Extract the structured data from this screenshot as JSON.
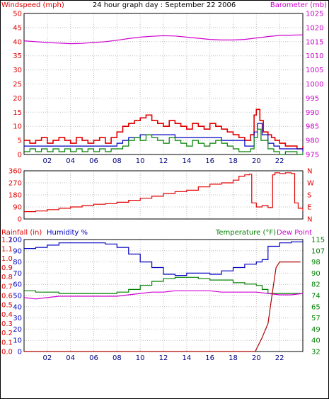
{
  "colors": {
    "red": "#e00000",
    "magenta": "#d000d0",
    "blue": "#0000c0",
    "green": "#008000",
    "darkred": "#b00000"
  },
  "chart_data": [
    {
      "id": "wind_baro",
      "type": "line",
      "title": "24 hour graph day : September 22 2006",
      "left_label": "Windspeed (mph)",
      "right_label": "Barometer (mb)",
      "x_ticks": [
        "02",
        "04",
        "06",
        "08",
        "10",
        "12",
        "14",
        "16",
        "18",
        "20",
        "22"
      ],
      "x_range": [
        0,
        24
      ],
      "y_left_ticks": [
        "0",
        "5",
        "10",
        "15",
        "20",
        "25",
        "30",
        "35",
        "40",
        "45",
        "50"
      ],
      "y_left_range": [
        0,
        50
      ],
      "y_right_ticks": [
        "975",
        "980",
        "985",
        "990",
        "995",
        "1000",
        "1005",
        "1010",
        "1015",
        "1020",
        "1025"
      ],
      "y_right_range": [
        975,
        1025
      ],
      "grid": true,
      "series": [
        {
          "role": "barometer",
          "axis": "right",
          "color": "magenta",
          "x": [
            0,
            1,
            2,
            3,
            4,
            5,
            6,
            7,
            8,
            9,
            10,
            11,
            12,
            13,
            14,
            15,
            16,
            17,
            18,
            19,
            20,
            21,
            22,
            23,
            24
          ],
          "y": [
            1015.3,
            1015.0,
            1014.7,
            1014.5,
            1014.3,
            1014.4,
            1014.7,
            1015.0,
            1015.5,
            1016.1,
            1016.6,
            1016.9,
            1017.1,
            1017.0,
            1016.6,
            1016.2,
            1015.8,
            1015.6,
            1015.6,
            1015.8,
            1016.3,
            1016.8,
            1017.2,
            1017.3,
            1017.4
          ]
        },
        {
          "role": "gust",
          "axis": "left",
          "color": "red",
          "x": [
            0,
            0.5,
            1,
            1.5,
            2,
            2.5,
            3,
            3.5,
            4,
            4.5,
            5,
            5.5,
            6,
            6.5,
            7,
            7.5,
            8,
            8.5,
            9,
            9.5,
            10,
            10.5,
            11,
            11.5,
            12,
            12.5,
            13,
            13.5,
            14,
            14.5,
            15,
            15.5,
            16,
            16.5,
            17,
            17.5,
            18,
            18.5,
            19,
            19.5,
            19.8,
            20,
            20.3,
            20.6,
            21,
            21.3,
            21.6,
            22,
            22.5,
            23,
            23.5,
            24
          ],
          "y": [
            5,
            4,
            5,
            6,
            4,
            5,
            6,
            5,
            4,
            6,
            5,
            4,
            5,
            6,
            4,
            6,
            8,
            10,
            11,
            12,
            13,
            14,
            12,
            11,
            10,
            12,
            11,
            10,
            9,
            11,
            10,
            9,
            11,
            10,
            9,
            8,
            7,
            6,
            5,
            7,
            14,
            16,
            12,
            8,
            7,
            6,
            5,
            4,
            3,
            3,
            2,
            3
          ]
        },
        {
          "role": "average",
          "axis": "left",
          "color": "blue",
          "x": [
            0,
            1,
            2,
            3,
            4,
            5,
            6,
            7,
            8,
            8.5,
            9,
            10,
            11,
            12,
            13,
            14,
            15,
            16,
            17,
            18,
            19,
            19.8,
            20.1,
            20.5,
            21,
            21.5,
            22,
            23,
            24
          ],
          "y": [
            3,
            3,
            3,
            3,
            3,
            3,
            3,
            3,
            4,
            5,
            6,
            7,
            7,
            7,
            6,
            6,
            6,
            6,
            5,
            5,
            3,
            8,
            11,
            7,
            4,
            3,
            2,
            2,
            1
          ]
        },
        {
          "role": "low",
          "axis": "left",
          "color": "green",
          "x": [
            0,
            0.5,
            1,
            1.5,
            2,
            2.5,
            3,
            3.5,
            4,
            4.5,
            5,
            5.5,
            6,
            6.5,
            7,
            7.5,
            8,
            8.5,
            9,
            9.5,
            10,
            10.5,
            11,
            11.5,
            12,
            12.5,
            13,
            13.5,
            14,
            14.5,
            15,
            15.5,
            16,
            16.5,
            17,
            17.5,
            18,
            18.5,
            19,
            19.5,
            19.8,
            20.1,
            20.4,
            21,
            21.5,
            22,
            22.5,
            23,
            23.5,
            24
          ],
          "y": [
            1,
            2,
            1,
            2,
            1,
            2,
            1,
            2,
            1,
            2,
            1,
            2,
            1,
            2,
            1,
            2,
            2,
            3,
            5,
            6,
            5,
            7,
            6,
            5,
            4,
            6,
            5,
            4,
            3,
            5,
            4,
            3,
            4,
            5,
            4,
            3,
            2,
            1,
            1,
            2,
            6,
            9,
            5,
            2,
            1,
            0,
            1,
            1,
            0,
            1
          ]
        }
      ]
    },
    {
      "id": "wind_dir",
      "type": "line",
      "x_ticks": [],
      "x_range": [
        0,
        24
      ],
      "y_left_ticks": [
        "0",
        "90",
        "180",
        "270",
        "360"
      ],
      "y_left_range": [
        0,
        360
      ],
      "y_right_ticks": [
        "N",
        "E",
        "S",
        "W",
        "N"
      ],
      "grid": true,
      "series": [
        {
          "role": "direction",
          "axis": "left",
          "color": "red",
          "x": [
            0,
            1,
            2,
            3,
            4,
            5,
            6,
            7,
            8,
            9,
            10,
            11,
            12,
            13,
            14,
            15,
            16,
            17,
            18,
            18.5,
            19,
            19.4,
            19.6,
            20,
            20.5,
            21,
            21.4,
            21.6,
            22,
            22.5,
            23,
            23.3,
            23.6,
            24
          ],
          "y": [
            55,
            60,
            70,
            80,
            90,
            100,
            110,
            115,
            125,
            140,
            155,
            170,
            190,
            205,
            215,
            240,
            260,
            270,
            290,
            320,
            330,
            335,
            120,
            90,
            100,
            85,
            330,
            345,
            340,
            345,
            340,
            120,
            80,
            60
          ]
        }
      ]
    },
    {
      "id": "rain_hum_temp",
      "type": "line",
      "left_label": "Rainfall (in)",
      "hum_label": "Humidity %",
      "temp_label": "Temperature (°F)",
      "dew_label": "Dew Point",
      "x_ticks": [
        "02",
        "04",
        "06",
        "08",
        "10",
        "12",
        "14",
        "16",
        "18",
        "20",
        "22"
      ],
      "x_range": [
        0,
        24
      ],
      "y_rain_ticks": [
        "0.0",
        "0.1",
        "0.2",
        "0.3",
        "0.4",
        "0.5",
        "0.6",
        "0.7",
        "0.8",
        "0.9",
        "1.0",
        "1.1",
        "1.2"
      ],
      "y_rain_range": [
        0,
        1.2
      ],
      "y_hum_ticks": [
        "0",
        "10",
        "20",
        "30",
        "40",
        "50",
        "60",
        "70",
        "80",
        "90",
        "100"
      ],
      "y_hum_range": [
        0,
        100
      ],
      "y_temp_ticks": [
        "32",
        "40",
        "49",
        "57",
        "65",
        "74",
        "82",
        "90",
        "98",
        "107",
        "115"
      ],
      "y_temp_range": [
        32,
        115
      ],
      "grid": true,
      "series": [
        {
          "role": "humidity",
          "axis": "hum",
          "color": "blue",
          "x": [
            0,
            1,
            2,
            3,
            4,
            5,
            6,
            7,
            8,
            9,
            10,
            11,
            12,
            13,
            14,
            15,
            16,
            17,
            18,
            19,
            20,
            20.5,
            21,
            22,
            23,
            24
          ],
          "y": [
            92,
            93,
            95,
            97,
            97,
            97,
            97,
            96,
            93,
            87,
            80,
            75,
            69,
            68,
            70,
            70,
            69,
            72,
            75,
            78,
            80,
            82,
            94,
            97,
            98,
            98
          ]
        },
        {
          "role": "temperature",
          "axis": "temp",
          "color": "green",
          "x": [
            0,
            1,
            2,
            3,
            4,
            5,
            6,
            7,
            8,
            9,
            10,
            11,
            12,
            13,
            14,
            15,
            16,
            17,
            18,
            19,
            20,
            20.5,
            21,
            22,
            23,
            24
          ],
          "y": [
            77,
            76,
            76,
            75,
            75,
            75,
            75,
            75,
            76,
            78,
            81,
            84,
            86,
            87,
            87,
            86,
            85,
            85,
            83,
            82,
            81,
            78,
            75,
            75,
            75,
            75
          ]
        },
        {
          "role": "dewpoint",
          "axis": "temp",
          "color": "magenta",
          "x": [
            0,
            1,
            2,
            3,
            4,
            5,
            6,
            7,
            8,
            9,
            10,
            11,
            12,
            13,
            14,
            15,
            16,
            17,
            18,
            19,
            20,
            21,
            22,
            23,
            24
          ],
          "y": [
            72,
            71,
            72,
            73,
            73,
            73,
            73,
            73,
            73,
            74,
            75,
            76,
            76,
            77,
            77,
            77,
            77,
            76,
            76,
            76,
            76,
            75,
            74,
            74,
            75
          ]
        },
        {
          "role": "rainfall",
          "axis": "rain",
          "color": "darkred",
          "x": [
            0,
            19.9,
            20.1,
            20.5,
            21.0,
            21.4,
            21.7,
            22.0,
            23.8
          ],
          "y": [
            0,
            0,
            0.05,
            0.15,
            0.3,
            0.65,
            0.9,
            0.96,
            0.96
          ]
        }
      ]
    }
  ]
}
